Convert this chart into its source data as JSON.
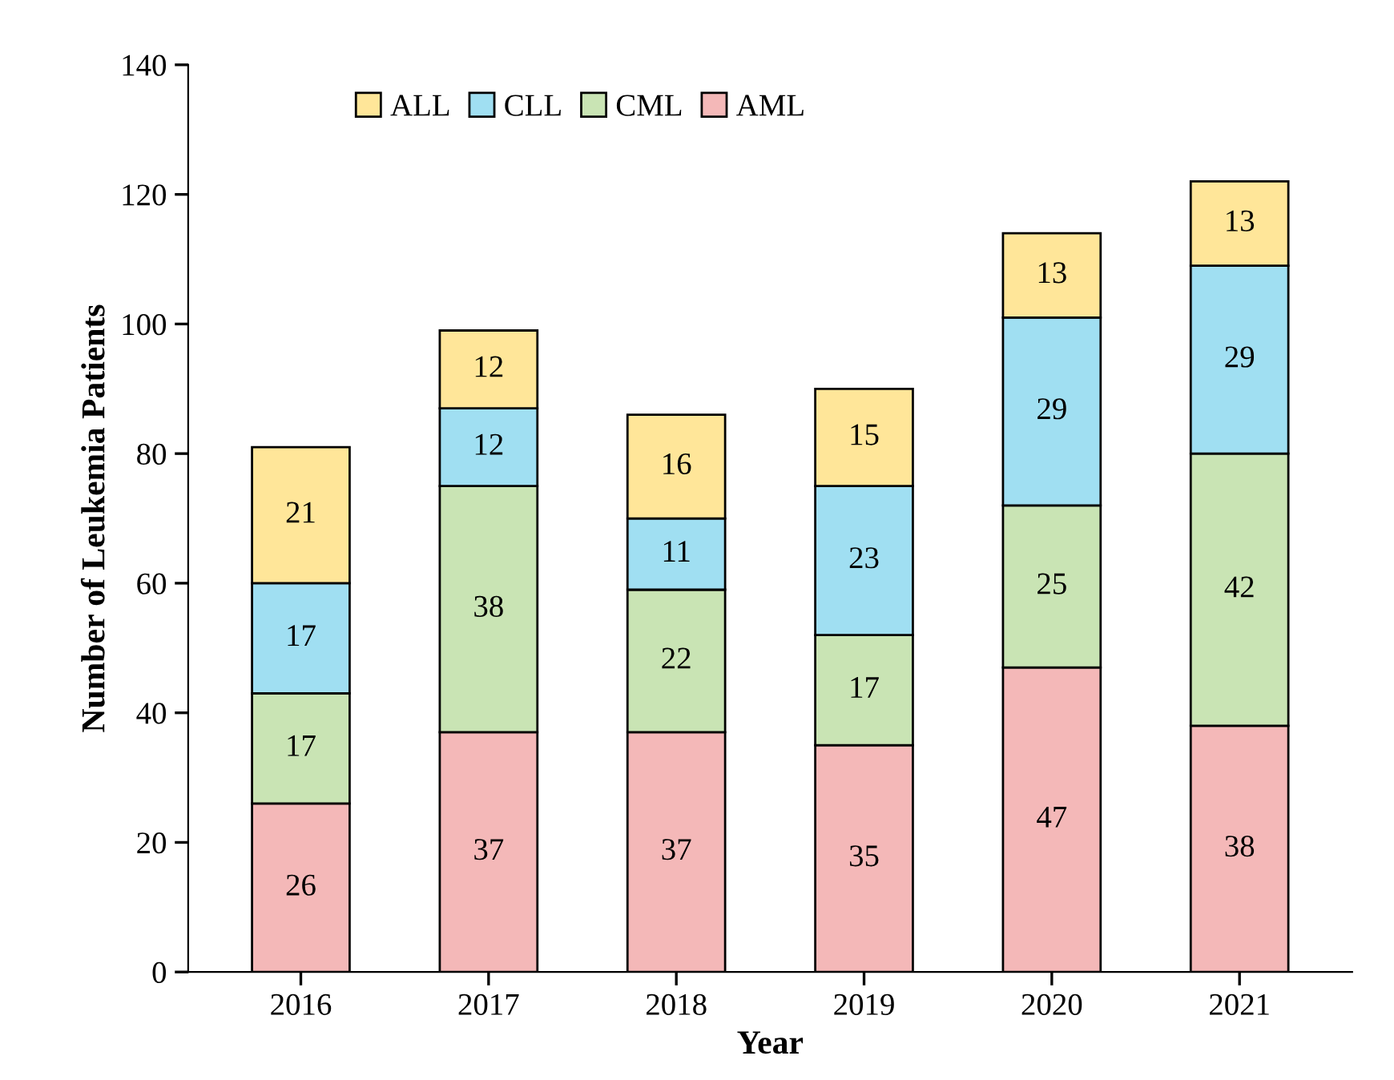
{
  "chart_data": {
    "type": "bar",
    "stacked": true,
    "xlabel": "Year",
    "ylabel": "Number of Leukemia Patients",
    "categories": [
      "2016",
      "2017",
      "2018",
      "2019",
      "2020",
      "2021"
    ],
    "series": [
      {
        "name": "AML",
        "color": "#f4b8b8",
        "values": [
          26,
          37,
          37,
          35,
          47,
          38
        ]
      },
      {
        "name": "CML",
        "color": "#c9e4b4",
        "values": [
          17,
          38,
          22,
          17,
          25,
          42
        ]
      },
      {
        "name": "CLL",
        "color": "#a0dff2",
        "values": [
          17,
          12,
          11,
          23,
          29,
          29
        ]
      },
      {
        "name": "ALL",
        "color": "#ffe699",
        "values": [
          21,
          12,
          16,
          15,
          13,
          13
        ]
      }
    ],
    "ylim": [
      0,
      140
    ],
    "yticks": [
      0,
      20,
      40,
      60,
      80,
      100,
      120,
      140
    ],
    "data_labels": true,
    "legend": "top left",
    "grid": false
  }
}
